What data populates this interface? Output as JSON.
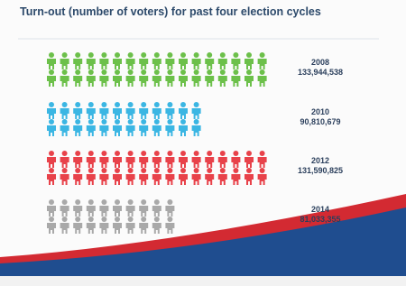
{
  "chart_data": {
    "type": "pictogram",
    "title": "Turn-out (number of voters) for past four election cycles",
    "categories": [
      "2008",
      "2010",
      "2012",
      "2014"
    ],
    "values": [
      133944538,
      90810679,
      131590825,
      81033355
    ],
    "value_labels": [
      "133,944,538",
      "90,810,679",
      "131,590,825",
      "81,033,355"
    ],
    "colors": [
      "#6cc04a",
      "#3bb6e3",
      "#e8424a",
      "#a9a9a9"
    ]
  }
}
